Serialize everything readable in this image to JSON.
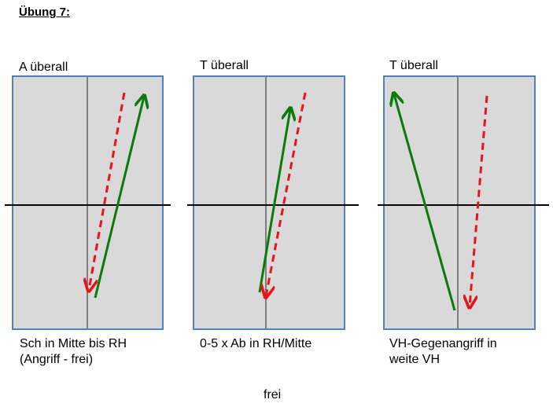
{
  "page": {
    "title": "Übung 7:",
    "footer": "frei"
  },
  "colors": {
    "court_fill": "#d9d9d9",
    "court_border": "#4f81bd",
    "center_line": "#7f7f7f",
    "net_line": "#000000",
    "green_arrow": "#0b7a0b",
    "red_arrow": "#e8131b"
  },
  "panels": [
    {
      "label": "A überall",
      "caption_lines": [
        "Sch in Mitte bis RH",
        "(Angriff - frei)"
      ]
    },
    {
      "label": "T überall",
      "caption_lines": [
        "0-5 x Ab in RH/Mitte"
      ]
    },
    {
      "label": "T überall",
      "caption_lines": [
        "VH-Gegenangriff in",
        "weite VH"
      ]
    }
  ]
}
